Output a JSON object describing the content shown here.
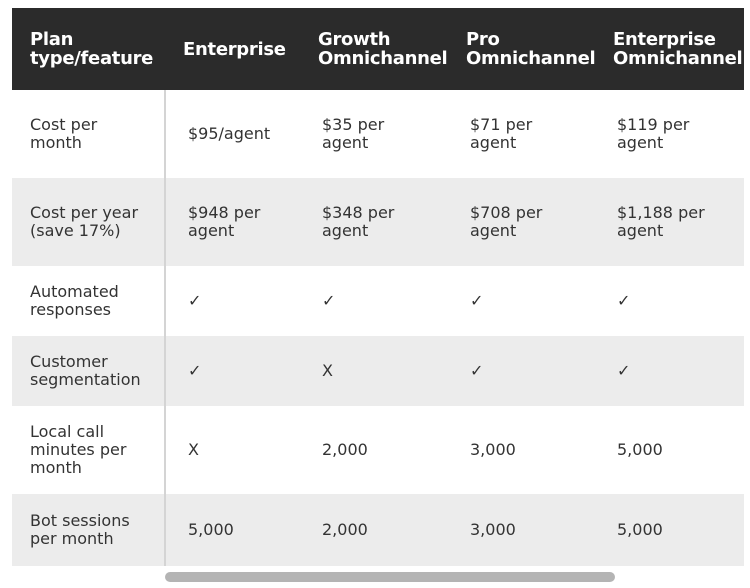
{
  "table": {
    "header": [
      "Plan type/feature",
      "Enterprise",
      "Growth Omnichannel",
      "Pro Omnichannel",
      "Enterprise Omnichannel"
    ],
    "rows": [
      [
        "Cost per month",
        "$95/agent",
        "$35 per agent",
        "$71 per agent",
        "$119 per agent"
      ],
      [
        "Cost per year (save 17%)",
        "$948 per agent",
        "$348 per agent",
        "$708 per agent",
        "$1,188 per agent"
      ],
      [
        "Automated responses",
        "✓",
        "✓",
        "✓",
        "✓"
      ],
      [
        "Customer segmentation",
        "✓",
        "X",
        "✓",
        "✓"
      ],
      [
        "Local call minutes per month",
        "X",
        "2,000",
        "3,000",
        "5,000"
      ],
      [
        "Bot sessions per month",
        "5,000",
        "2,000",
        "3,000",
        "5,000"
      ]
    ]
  }
}
